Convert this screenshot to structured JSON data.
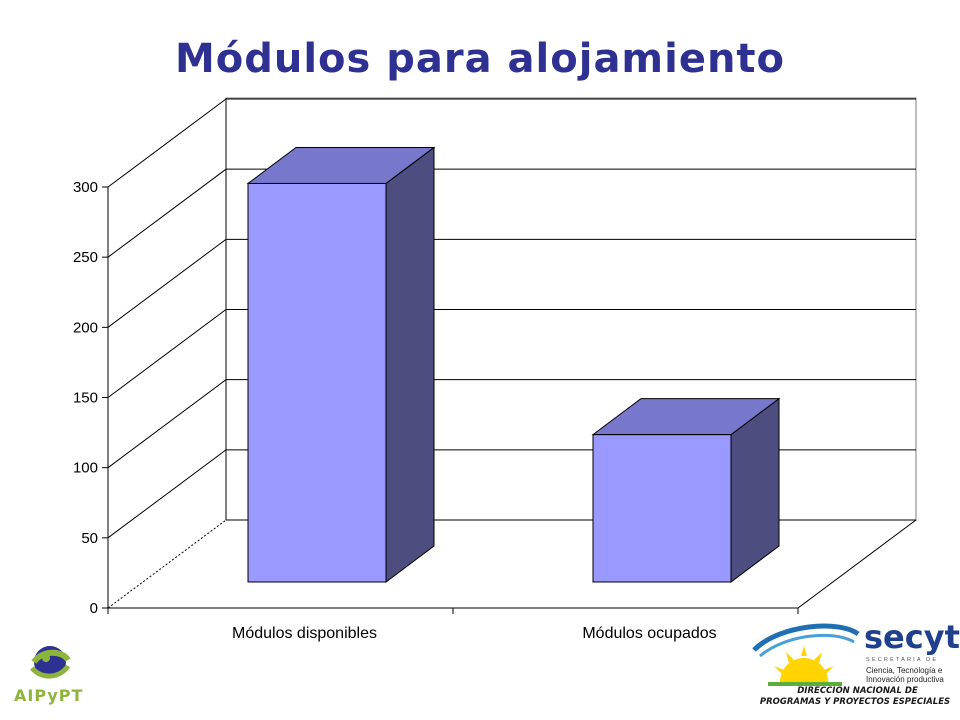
{
  "page": {
    "title": "Módulos para alojamiento"
  },
  "chart_data": {
    "type": "bar",
    "style": "3d",
    "categories": [
      "Módulos disponibles",
      "Módulos ocupados"
    ],
    "values": [
      284,
      105
    ],
    "ylim": [
      0,
      300
    ],
    "yticks": [
      0,
      50,
      100,
      150,
      200,
      250,
      300
    ],
    "grid": true,
    "colors": {
      "bar_front": "#9999FF",
      "bar_top": "#7777CC",
      "bar_side": "#4D4D80",
      "gridline": "#000000"
    }
  },
  "logos": {
    "left": {
      "text": "AIPyPT",
      "icon": "aipypt-globe-logo",
      "colors": [
        "#8DB53C",
        "#2E3192"
      ]
    },
    "right": {
      "name": "secyt",
      "icon": "secyt-sun-logo",
      "subtitle_small": "SECRETARIA DE",
      "subtitle_lines": [
        "Ciencia, Tecnología e",
        "Innovación productiva"
      ],
      "footer_line1": "DIRECCION NACIONAL DE",
      "footer_line2": "PROGRAMAS Y PROYECTOS ESPECIALES"
    }
  }
}
